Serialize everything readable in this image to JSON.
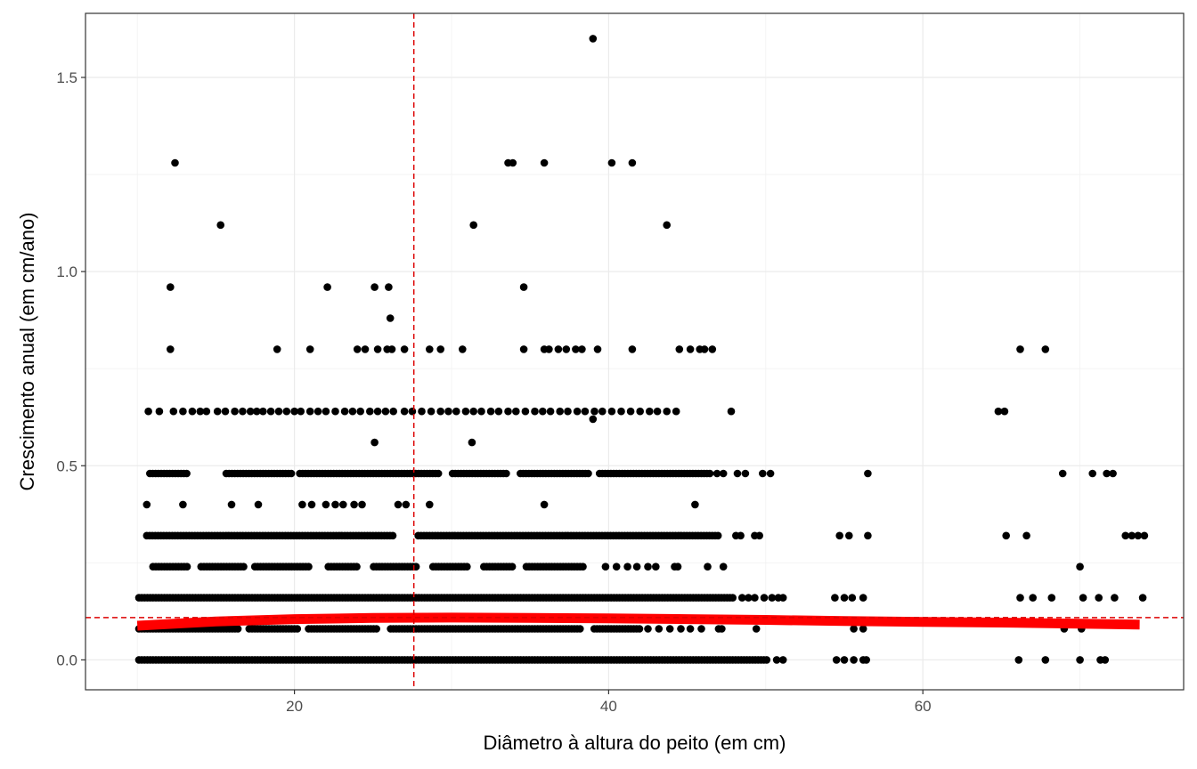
{
  "chart_data": {
    "type": "scatter",
    "title": "",
    "xlabel": "Diâmetro à altura do peito (em cm)",
    "ylabel": "Crescimento anual (em cm/ano)",
    "xlim": [
      6.7,
      76.6
    ],
    "ylim": [
      -0.077,
      1.665
    ],
    "xticks": [
      20,
      40,
      60
    ],
    "xtick_labels": [
      "20",
      "40",
      "60"
    ],
    "yticks": [
      0.0,
      0.5,
      1.0,
      1.5
    ],
    "ytick_labels": [
      "0.0",
      "0.5",
      "1.0",
      "1.5"
    ],
    "x_minor_grid": [
      10,
      30,
      50,
      70
    ],
    "y_minor_grid": [
      0.25,
      0.75,
      1.25
    ],
    "grid": true,
    "theme": "bw",
    "point_color": "#000000",
    "trend_color": "#ff0000",
    "reference_color": "#dd0000",
    "vline_x": 27.6,
    "hline_y": 0.109,
    "trend_line": {
      "x": [
        10.0,
        15,
        20,
        25,
        30,
        35,
        40,
        45,
        50,
        55,
        60,
        65,
        70,
        73.8
      ],
      "y": [
        0.088,
        0.099,
        0.105,
        0.108,
        0.109,
        0.108,
        0.107,
        0.105,
        0.103,
        0.1,
        0.098,
        0.096,
        0.093,
        0.091
      ]
    },
    "bands": [
      {
        "y": 0.0,
        "start": 10.1,
        "end": 50.2
      },
      {
        "y": 0.08,
        "start": 10.1,
        "end": 42.0,
        "gaps": [
          [
            16.5,
            17.0
          ],
          [
            20.2,
            20.8
          ],
          [
            25.3,
            26.1
          ],
          [
            38.3,
            38.9
          ]
        ]
      },
      {
        "y": 0.16,
        "start": 10.1,
        "end": 48.0
      },
      {
        "y": 0.24,
        "start": 11.0,
        "end": 38.5,
        "gaps": [
          [
            13.3,
            14.0
          ],
          [
            16.8,
            17.4
          ],
          [
            21.0,
            22.0
          ],
          [
            24.0,
            25.0
          ],
          [
            27.8,
            28.8
          ],
          [
            31.0,
            32.0
          ],
          [
            34.0,
            34.6
          ]
        ]
      },
      {
        "y": 0.32,
        "start": 10.6,
        "end": 47.0,
        "gaps": [
          [
            26.4,
            27.8
          ]
        ]
      },
      {
        "y": 0.48,
        "start": 10.8,
        "end": 46.5,
        "gaps": [
          [
            13.2,
            15.6
          ],
          [
            19.8,
            20.3
          ],
          [
            29.3,
            30.0
          ],
          [
            33.6,
            34.3
          ],
          [
            38.7,
            39.3
          ]
        ]
      }
    ],
    "points": [
      [
        50.7,
        0
      ],
      [
        51.1,
        0
      ],
      [
        54.5,
        0
      ],
      [
        55.0,
        0
      ],
      [
        55.6,
        0
      ],
      [
        56.2,
        0
      ],
      [
        56.4,
        0
      ],
      [
        66.1,
        0
      ],
      [
        67.8,
        0
      ],
      [
        70.0,
        0
      ],
      [
        71.3,
        0
      ],
      [
        71.6,
        0
      ],
      [
        42.5,
        0.08
      ],
      [
        43.2,
        0.08
      ],
      [
        43.9,
        0.08
      ],
      [
        44.6,
        0.08
      ],
      [
        45.2,
        0.08
      ],
      [
        45.9,
        0.08
      ],
      [
        47.0,
        0.08
      ],
      [
        47.2,
        0.08
      ],
      [
        49.4,
        0.08
      ],
      [
        55.6,
        0.08
      ],
      [
        56.2,
        0.08
      ],
      [
        69.0,
        0.08
      ],
      [
        70.1,
        0.08
      ],
      [
        48.5,
        0.16
      ],
      [
        48.9,
        0.16
      ],
      [
        49.3,
        0.16
      ],
      [
        49.9,
        0.16
      ],
      [
        50.4,
        0.16
      ],
      [
        50.8,
        0.16
      ],
      [
        51.1,
        0.16
      ],
      [
        54.4,
        0.16
      ],
      [
        55.0,
        0.16
      ],
      [
        55.5,
        0.16
      ],
      [
        56.2,
        0.16
      ],
      [
        66.2,
        0.16
      ],
      [
        67.0,
        0.16
      ],
      [
        68.2,
        0.16
      ],
      [
        70.2,
        0.16
      ],
      [
        71.2,
        0.16
      ],
      [
        72.2,
        0.16
      ],
      [
        74.0,
        0.16
      ],
      [
        39.8,
        0.24
      ],
      [
        40.5,
        0.24
      ],
      [
        41.2,
        0.24
      ],
      [
        41.8,
        0.24
      ],
      [
        42.5,
        0.24
      ],
      [
        43.0,
        0.24
      ],
      [
        44.2,
        0.24
      ],
      [
        44.4,
        0.24
      ],
      [
        46.3,
        0.24
      ],
      [
        47.3,
        0.24
      ],
      [
        70.0,
        0.24
      ],
      [
        48.1,
        0.32
      ],
      [
        48.4,
        0.32
      ],
      [
        49.3,
        0.32
      ],
      [
        49.6,
        0.32
      ],
      [
        54.7,
        0.32
      ],
      [
        55.3,
        0.32
      ],
      [
        56.5,
        0.32
      ],
      [
        65.3,
        0.32
      ],
      [
        66.6,
        0.32
      ],
      [
        72.9,
        0.32
      ],
      [
        73.3,
        0.32
      ],
      [
        73.7,
        0.32
      ],
      [
        74.1,
        0.32
      ],
      [
        10.6,
        0.4
      ],
      [
        12.9,
        0.4
      ],
      [
        16.0,
        0.4
      ],
      [
        17.7,
        0.4
      ],
      [
        20.5,
        0.4
      ],
      [
        21.1,
        0.4
      ],
      [
        22.0,
        0.4
      ],
      [
        22.6,
        0.4
      ],
      [
        23.1,
        0.4
      ],
      [
        23.8,
        0.4
      ],
      [
        24.3,
        0.4
      ],
      [
        26.6,
        0.4
      ],
      [
        27.1,
        0.4
      ],
      [
        28.6,
        0.4
      ],
      [
        35.9,
        0.4
      ],
      [
        45.5,
        0.4
      ],
      [
        46.9,
        0.48
      ],
      [
        47.3,
        0.48
      ],
      [
        48.2,
        0.48
      ],
      [
        48.7,
        0.48
      ],
      [
        49.8,
        0.48
      ],
      [
        50.3,
        0.48
      ],
      [
        56.5,
        0.48
      ],
      [
        68.9,
        0.48
      ],
      [
        70.8,
        0.48
      ],
      [
        71.7,
        0.48
      ],
      [
        72.1,
        0.48
      ],
      [
        25.1,
        0.56
      ],
      [
        31.3,
        0.56
      ],
      [
        39.0,
        0.62
      ],
      [
        10.7,
        0.64
      ],
      [
        11.4,
        0.64
      ],
      [
        12.3,
        0.64
      ],
      [
        12.9,
        0.64
      ],
      [
        13.5,
        0.64
      ],
      [
        14.0,
        0.64
      ],
      [
        14.4,
        0.64
      ],
      [
        15.1,
        0.64
      ],
      [
        15.6,
        0.64
      ],
      [
        16.2,
        0.64
      ],
      [
        16.7,
        0.64
      ],
      [
        17.2,
        0.64
      ],
      [
        17.6,
        0.64
      ],
      [
        18.0,
        0.64
      ],
      [
        18.5,
        0.64
      ],
      [
        19.0,
        0.64
      ],
      [
        19.5,
        0.64
      ],
      [
        20.0,
        0.64
      ],
      [
        20.4,
        0.64
      ],
      [
        21.0,
        0.64
      ],
      [
        21.5,
        0.64
      ],
      [
        22.0,
        0.64
      ],
      [
        22.6,
        0.64
      ],
      [
        23.2,
        0.64
      ],
      [
        23.7,
        0.64
      ],
      [
        24.2,
        0.64
      ],
      [
        24.8,
        0.64
      ],
      [
        25.3,
        0.64
      ],
      [
        25.8,
        0.64
      ],
      [
        26.3,
        0.64
      ],
      [
        27.0,
        0.64
      ],
      [
        27.5,
        0.64
      ],
      [
        28.1,
        0.64
      ],
      [
        28.7,
        0.64
      ],
      [
        29.3,
        0.64
      ],
      [
        29.8,
        0.64
      ],
      [
        30.3,
        0.64
      ],
      [
        30.9,
        0.64
      ],
      [
        31.4,
        0.64
      ],
      [
        31.9,
        0.64
      ],
      [
        32.5,
        0.64
      ],
      [
        33.0,
        0.64
      ],
      [
        33.6,
        0.64
      ],
      [
        34.1,
        0.64
      ],
      [
        34.7,
        0.64
      ],
      [
        35.3,
        0.64
      ],
      [
        35.8,
        0.64
      ],
      [
        36.3,
        0.64
      ],
      [
        36.9,
        0.64
      ],
      [
        37.4,
        0.64
      ],
      [
        38.0,
        0.64
      ],
      [
        38.5,
        0.64
      ],
      [
        39.1,
        0.64
      ],
      [
        39.6,
        0.64
      ],
      [
        40.2,
        0.64
      ],
      [
        40.8,
        0.64
      ],
      [
        41.4,
        0.64
      ],
      [
        42.0,
        0.64
      ],
      [
        42.6,
        0.64
      ],
      [
        43.1,
        0.64
      ],
      [
        43.7,
        0.64
      ],
      [
        44.3,
        0.64
      ],
      [
        47.8,
        0.64
      ],
      [
        64.8,
        0.64
      ],
      [
        65.2,
        0.64
      ],
      [
        12.1,
        0.8
      ],
      [
        18.9,
        0.8
      ],
      [
        21.0,
        0.8
      ],
      [
        24.0,
        0.8
      ],
      [
        24.5,
        0.8
      ],
      [
        25.3,
        0.8
      ],
      [
        25.9,
        0.8
      ],
      [
        26.2,
        0.8
      ],
      [
        27.0,
        0.8
      ],
      [
        28.6,
        0.8
      ],
      [
        29.3,
        0.8
      ],
      [
        30.7,
        0.8
      ],
      [
        34.6,
        0.8
      ],
      [
        35.9,
        0.8
      ],
      [
        36.2,
        0.8
      ],
      [
        36.8,
        0.8
      ],
      [
        37.3,
        0.8
      ],
      [
        37.9,
        0.8
      ],
      [
        38.3,
        0.8
      ],
      [
        39.3,
        0.8
      ],
      [
        41.5,
        0.8
      ],
      [
        44.5,
        0.8
      ],
      [
        45.2,
        0.8
      ],
      [
        45.8,
        0.8
      ],
      [
        46.1,
        0.8
      ],
      [
        46.6,
        0.8
      ],
      [
        66.2,
        0.8
      ],
      [
        67.8,
        0.8
      ],
      [
        26.1,
        0.88
      ],
      [
        12.1,
        0.96
      ],
      [
        22.1,
        0.96
      ],
      [
        25.1,
        0.96
      ],
      [
        26.0,
        0.96
      ],
      [
        34.6,
        0.96
      ],
      [
        15.3,
        1.12
      ],
      [
        31.4,
        1.12
      ],
      [
        43.7,
        1.12
      ],
      [
        12.4,
        1.28
      ],
      [
        33.6,
        1.28
      ],
      [
        33.9,
        1.28
      ],
      [
        35.9,
        1.28
      ],
      [
        40.2,
        1.28
      ],
      [
        41.5,
        1.28
      ],
      [
        39.0,
        1.6
      ]
    ]
  }
}
